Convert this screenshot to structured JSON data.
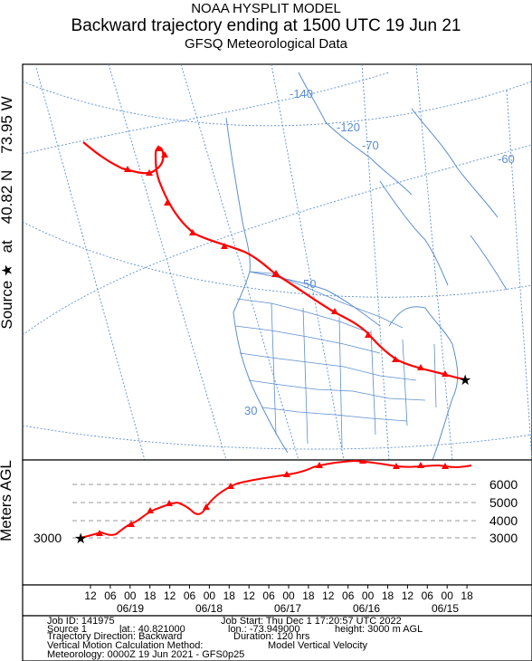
{
  "title": {
    "line1": "NOAA HYSPLIT MODEL",
    "line2": "Backward trajectory ending at 1500 UTC 19 Jun 21",
    "line3": "GFSQ Meteorological Data"
  },
  "source_label": {
    "prefix": "Source",
    "star": "★",
    "at": "at",
    "lat": "40.82 N",
    "lon": "73.95 W"
  },
  "map": {
    "longitude_labels": [
      "-140",
      "-120",
      "-70",
      "-60"
    ],
    "latitude_labels": [
      "50",
      "30"
    ],
    "colors": {
      "grid": "#5b8ed0",
      "coast": "#5b8ed0",
      "trajectory": "#ff0000"
    },
    "trajectory_markers_every_hours": 6,
    "end_marker": "star-icon"
  },
  "height_panel": {
    "ylabel": "Meters AGL",
    "right_ticks": [
      "6000",
      "5000",
      "4000",
      "3000"
    ],
    "left_tick": "3000",
    "hour_ticks": [
      "12",
      "06",
      "00",
      "18",
      "12",
      "06",
      "00",
      "18",
      "12",
      "06",
      "00",
      "18",
      "12",
      "06",
      "00",
      "18",
      "12",
      "06",
      "00",
      "18"
    ],
    "date_ticks": [
      "06/19",
      "06/18",
      "06/17",
      "06/16",
      "06/15"
    ]
  },
  "info": {
    "job_id": "Job ID: 141975",
    "job_start": "Job Start: Thu Dec  1 17:20:57 UTC 2022",
    "source": "Source 1",
    "lat": "lat.: 40.821000",
    "lon": "lon.: -73.949000",
    "height": "height: 3000 m AGL",
    "direction": "Trajectory Direction: Backward",
    "duration": "Duration: 120 hrs",
    "vertical_label": "Vertical Motion Calculation Method:",
    "vertical_value": "Model Vertical Velocity",
    "meteorology": "Meteorology: 0000Z 19 Jun 2021 - GFS0p25"
  }
}
